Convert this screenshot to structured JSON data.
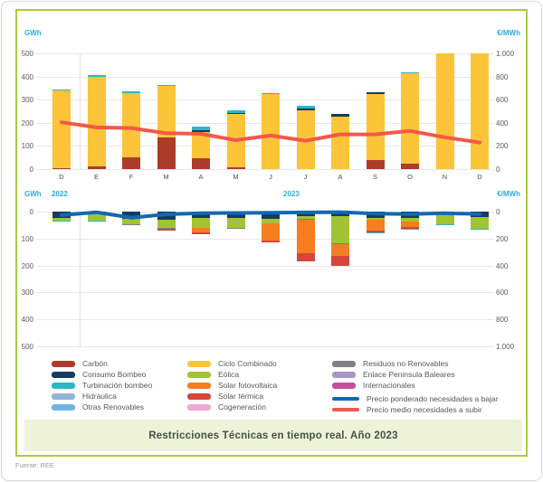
{
  "title": "Restricciones Técnicas en tiempo real. Año 2023",
  "source": "Fuente: REE",
  "header": {
    "left_unit": "GWh",
    "right_unit": "€/MWh"
  },
  "mid_header": {
    "left_unit": "GWh",
    "year_left": "2022",
    "year_right": "2023",
    "right_unit": "€/MWh"
  },
  "colors": {
    "carbon": "#ad3b2b",
    "consumo_bombeo": "#173a63",
    "turbinacion": "#29b7c9",
    "hidraulica": "#94b4d8",
    "otras_renovables": "#70b5e5",
    "ciclo_combinado": "#fcc438",
    "eolica": "#a1c434",
    "solar_fotovoltaica": "#f47e20",
    "solar_termica": "#d8453a",
    "cogeneracion": "#f1a8d3",
    "residuos": "#7e8083",
    "enlace_baleares": "#a995c8",
    "internacionales": "#c2509e",
    "precio_bajar": "#1368b1",
    "precio_subir": "#f2584a",
    "axis_blue": "#29abe2",
    "grid": "#e8e8e8",
    "border_green": "#a8cc3f",
    "title_bg": "#eef3d8"
  },
  "legend": {
    "columns": [
      [
        {
          "key": "carbon",
          "label": "Carbón"
        },
        {
          "key": "consumo_bombeo",
          "label": "Consumo Bombeo"
        },
        {
          "key": "turbinacion",
          "label": "Turbinación bombeo"
        },
        {
          "key": "hidraulica",
          "label": "Hidráulica"
        },
        {
          "key": "otras_renovables",
          "label": "Otras Renovables"
        }
      ],
      [
        {
          "key": "ciclo_combinado",
          "label": "Ciclo Combinado"
        },
        {
          "key": "eolica",
          "label": "Eólica"
        },
        {
          "key": "solar_fotovoltaica",
          "label": "Solar fotovoltaica"
        },
        {
          "key": "solar_termica",
          "label": "Solar térmica"
        },
        {
          "key": "cogeneracion",
          "label": "Cogeneración"
        }
      ],
      [
        {
          "key": "residuos",
          "label": "Residuos no Renovables"
        },
        {
          "key": "enlace_baleares",
          "label": "Enlace Peninsula Baleares"
        },
        {
          "key": "internacionales",
          "label": "Internacionales"
        }
      ]
    ],
    "lines": [
      {
        "key": "precio_bajar",
        "label": "Precio ponderado necesidades a bajar"
      },
      {
        "key": "precio_subir",
        "label": "Precio medio necesidades a subir"
      }
    ]
  },
  "chart_data": {
    "type": "bar",
    "categories": [
      "D",
      "E",
      "F",
      "M",
      "A",
      "M",
      "J",
      "J",
      "A",
      "S",
      "O",
      "N",
      "D"
    ],
    "year_left": "2022",
    "year_right": "2023",
    "top_panel": {
      "description": "Energia necesidades a subir (stacked GWh) + precio medio (€/MWh)",
      "ylim_left_gwh": [
        0,
        500
      ],
      "ylim_right_eur_mwh": [
        0,
        1000
      ],
      "left_ticks": [
        "500",
        "400",
        "300",
        "200",
        "100",
        "0"
      ],
      "right_ticks": [
        "1.000",
        "800",
        "600",
        "400",
        "200",
        "0"
      ],
      "series": [
        {
          "key": "carbon",
          "name": "Carbón",
          "values": [
            4,
            10,
            50,
            138,
            45,
            6,
            0,
            0,
            0,
            40,
            22,
            0,
            0
          ]
        },
        {
          "key": "ciclo_combinado",
          "name": "Ciclo Combinado",
          "values": [
            336,
            390,
            280,
            222,
            117,
            232,
            324,
            255,
            227,
            285,
            391,
            500,
            500
          ]
        },
        {
          "key": "consumo_bombeo",
          "name": "Consumo Bombeo",
          "values": [
            0,
            0,
            0,
            0,
            6,
            5,
            0,
            8,
            10,
            8,
            0,
            0,
            0
          ]
        },
        {
          "key": "turbinacion",
          "name": "Turbinación bombeo",
          "values": [
            5,
            5,
            5,
            5,
            17,
            12,
            6,
            9,
            0,
            0,
            7,
            0,
            0
          ]
        }
      ],
      "line": {
        "key": "precio_subir",
        "name": "Precio medio necesidades a subir",
        "values_eur_mwh": [
          405,
          360,
          355,
          310,
          305,
          250,
          290,
          245,
          300,
          300,
          330,
          275,
          230
        ]
      }
    },
    "bottom_panel": {
      "description": "Energia necesidades a bajar (stacked GWh, eje invertido) + precio ponderado (€/MWh)",
      "ylim_left_gwh": [
        0,
        500
      ],
      "ylim_right_eur_mwh": [
        0,
        1000
      ],
      "left_ticks": [
        "0",
        "100",
        "200",
        "300",
        "400",
        "500"
      ],
      "right_ticks": [
        "0",
        "200",
        "400",
        "600",
        "800",
        "1.000"
      ],
      "series": [
        {
          "key": "consumo_bombeo",
          "name": "Consumo Bombeo",
          "values": [
            22,
            8,
            28,
            30,
            22,
            25,
            28,
            18,
            18,
            22,
            24,
            10,
            20
          ]
        },
        {
          "key": "eolica",
          "name": "Eólica",
          "values": [
            13,
            25,
            18,
            32,
            38,
            35,
            15,
            10,
            100,
            8,
            14,
            38,
            44
          ]
        },
        {
          "key": "residuos",
          "name": "Residuos no Renovables",
          "values": [
            0,
            0,
            2,
            2,
            0,
            5,
            2,
            2,
            3,
            0,
            0,
            0,
            0
          ]
        },
        {
          "key": "solar_fotovoltaica",
          "name": "Solar fotovoltaica",
          "values": [
            0,
            0,
            0,
            0,
            18,
            0,
            62,
            125,
            45,
            40,
            20,
            0,
            0
          ]
        },
        {
          "key": "solar_termica",
          "name": "Solar térmica",
          "values": [
            0,
            0,
            0,
            6,
            5,
            0,
            8,
            28,
            34,
            6,
            5,
            0,
            0
          ]
        },
        {
          "key": "turbinacion",
          "name": "Turbinación bombeo",
          "values": [
            2,
            3,
            0,
            0,
            0,
            0,
            0,
            0,
            0,
            2,
            3,
            4,
            4
          ]
        }
      ],
      "line": {
        "key": "precio_bajar",
        "name": "Precio ponderado necesidades a bajar",
        "values_eur_mwh": [
          26,
          5,
          45,
          20,
          12,
          10,
          8,
          6,
          4,
          15,
          18,
          12,
          18
        ]
      }
    }
  }
}
